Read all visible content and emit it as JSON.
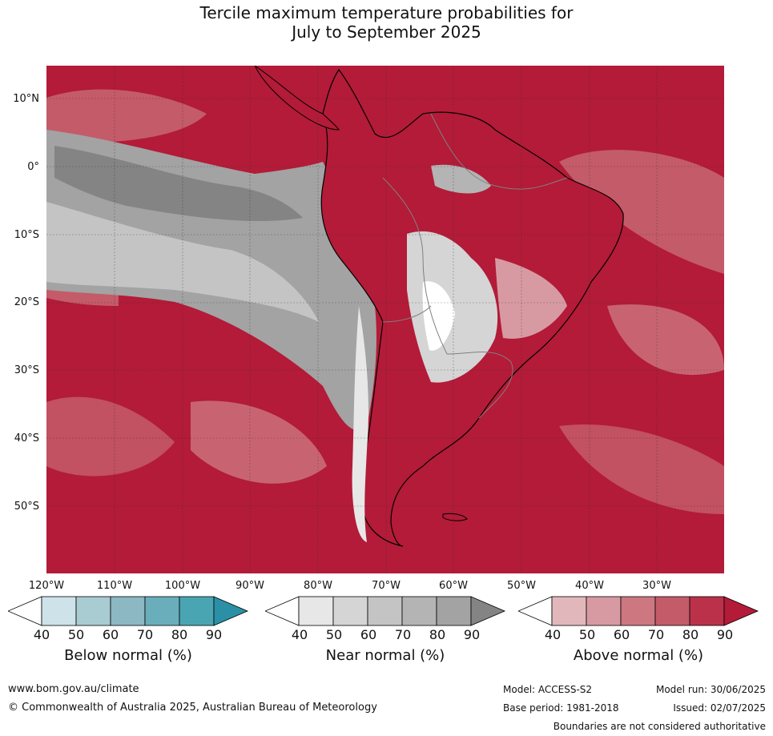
{
  "title_line1": "Tercile maximum temperature probabilities for",
  "title_line2": "July to September 2025",
  "map": {
    "lat_labels": [
      "10°N",
      "0°",
      "10°S",
      "20°S",
      "30°S",
      "40°S",
      "50°S"
    ],
    "lon_labels": [
      "120°W",
      "110°W",
      "100°W",
      "90°W",
      "80°W",
      "70°W",
      "60°W",
      "50°W",
      "40°W",
      "30°W"
    ],
    "colors": {
      "ocean_above": "#b31b38",
      "land_outline": "#000000",
      "border": "#808080",
      "grid": "#333333"
    }
  },
  "legends": [
    {
      "title": "Below normal (%)",
      "ticks": [
        "40",
        "50",
        "60",
        "70",
        "80",
        "90"
      ],
      "colors": [
        "#ffffff",
        "#cde3e9",
        "#a9cbd2",
        "#8bb8c3",
        "#6aaebc",
        "#4aa5b3",
        "#2b8fa6"
      ]
    },
    {
      "title": "Near normal (%)",
      "ticks": [
        "40",
        "50",
        "60",
        "70",
        "80",
        "90"
      ],
      "colors": [
        "#ffffff",
        "#e7e7e7",
        "#d5d5d5",
        "#c4c4c4",
        "#b4b4b4",
        "#a3a3a3",
        "#848484"
      ]
    },
    {
      "title": "Above normal (%)",
      "ticks": [
        "40",
        "50",
        "60",
        "70",
        "80",
        "90"
      ],
      "colors": [
        "#ffffff",
        "#e2b7bc",
        "#d79aa2",
        "#cd7781",
        "#c45b69",
        "#bb3149",
        "#b31b38"
      ]
    }
  ],
  "footer": {
    "website": "www.bom.gov.au/climate",
    "copyright": "© Commonwealth of Australia 2025, Australian Bureau of Meteorology",
    "model": "Model: ACCESS-S2",
    "base_period": "Base period: 1981-2018",
    "model_run": "Model run: 30/06/2025",
    "issued": "Issued: 02/07/2025",
    "disclaimer": "Boundaries are not considered authoritative"
  }
}
